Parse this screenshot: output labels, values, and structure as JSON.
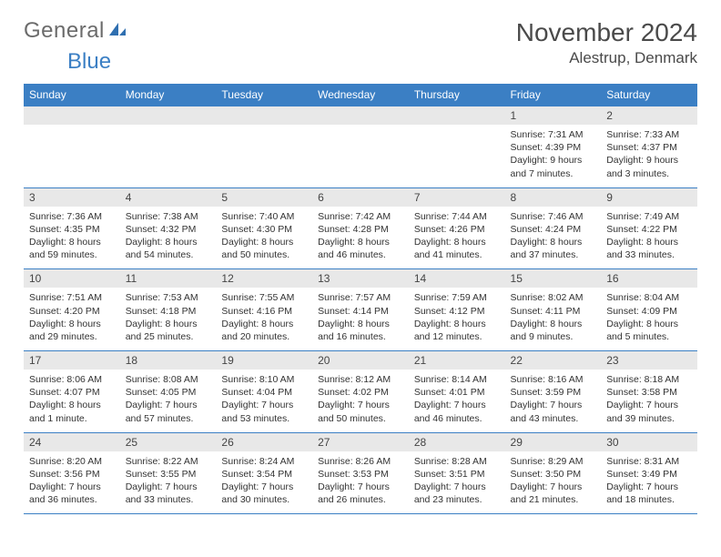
{
  "brand": {
    "general": "General",
    "blue": "Blue"
  },
  "title": {
    "month_year": "November 2024",
    "location": "Alestrup, Denmark"
  },
  "colors": {
    "accent": "#3b7fc4",
    "header_text": "#ffffff",
    "daybar": "#e8e8e8",
    "text": "#333333",
    "logo_gray": "#6b6b6b"
  },
  "day_labels": [
    "Sunday",
    "Monday",
    "Tuesday",
    "Wednesday",
    "Thursday",
    "Friday",
    "Saturday"
  ],
  "weeks": [
    [
      null,
      null,
      null,
      null,
      null,
      {
        "n": "1",
        "sr": "Sunrise: 7:31 AM",
        "ss": "Sunset: 4:39 PM",
        "dl": "Daylight: 9 hours and 7 minutes."
      },
      {
        "n": "2",
        "sr": "Sunrise: 7:33 AM",
        "ss": "Sunset: 4:37 PM",
        "dl": "Daylight: 9 hours and 3 minutes."
      }
    ],
    [
      {
        "n": "3",
        "sr": "Sunrise: 7:36 AM",
        "ss": "Sunset: 4:35 PM",
        "dl": "Daylight: 8 hours and 59 minutes."
      },
      {
        "n": "4",
        "sr": "Sunrise: 7:38 AM",
        "ss": "Sunset: 4:32 PM",
        "dl": "Daylight: 8 hours and 54 minutes."
      },
      {
        "n": "5",
        "sr": "Sunrise: 7:40 AM",
        "ss": "Sunset: 4:30 PM",
        "dl": "Daylight: 8 hours and 50 minutes."
      },
      {
        "n": "6",
        "sr": "Sunrise: 7:42 AM",
        "ss": "Sunset: 4:28 PM",
        "dl": "Daylight: 8 hours and 46 minutes."
      },
      {
        "n": "7",
        "sr": "Sunrise: 7:44 AM",
        "ss": "Sunset: 4:26 PM",
        "dl": "Daylight: 8 hours and 41 minutes."
      },
      {
        "n": "8",
        "sr": "Sunrise: 7:46 AM",
        "ss": "Sunset: 4:24 PM",
        "dl": "Daylight: 8 hours and 37 minutes."
      },
      {
        "n": "9",
        "sr": "Sunrise: 7:49 AM",
        "ss": "Sunset: 4:22 PM",
        "dl": "Daylight: 8 hours and 33 minutes."
      }
    ],
    [
      {
        "n": "10",
        "sr": "Sunrise: 7:51 AM",
        "ss": "Sunset: 4:20 PM",
        "dl": "Daylight: 8 hours and 29 minutes."
      },
      {
        "n": "11",
        "sr": "Sunrise: 7:53 AM",
        "ss": "Sunset: 4:18 PM",
        "dl": "Daylight: 8 hours and 25 minutes."
      },
      {
        "n": "12",
        "sr": "Sunrise: 7:55 AM",
        "ss": "Sunset: 4:16 PM",
        "dl": "Daylight: 8 hours and 20 minutes."
      },
      {
        "n": "13",
        "sr": "Sunrise: 7:57 AM",
        "ss": "Sunset: 4:14 PM",
        "dl": "Daylight: 8 hours and 16 minutes."
      },
      {
        "n": "14",
        "sr": "Sunrise: 7:59 AM",
        "ss": "Sunset: 4:12 PM",
        "dl": "Daylight: 8 hours and 12 minutes."
      },
      {
        "n": "15",
        "sr": "Sunrise: 8:02 AM",
        "ss": "Sunset: 4:11 PM",
        "dl": "Daylight: 8 hours and 9 minutes."
      },
      {
        "n": "16",
        "sr": "Sunrise: 8:04 AM",
        "ss": "Sunset: 4:09 PM",
        "dl": "Daylight: 8 hours and 5 minutes."
      }
    ],
    [
      {
        "n": "17",
        "sr": "Sunrise: 8:06 AM",
        "ss": "Sunset: 4:07 PM",
        "dl": "Daylight: 8 hours and 1 minute."
      },
      {
        "n": "18",
        "sr": "Sunrise: 8:08 AM",
        "ss": "Sunset: 4:05 PM",
        "dl": "Daylight: 7 hours and 57 minutes."
      },
      {
        "n": "19",
        "sr": "Sunrise: 8:10 AM",
        "ss": "Sunset: 4:04 PM",
        "dl": "Daylight: 7 hours and 53 minutes."
      },
      {
        "n": "20",
        "sr": "Sunrise: 8:12 AM",
        "ss": "Sunset: 4:02 PM",
        "dl": "Daylight: 7 hours and 50 minutes."
      },
      {
        "n": "21",
        "sr": "Sunrise: 8:14 AM",
        "ss": "Sunset: 4:01 PM",
        "dl": "Daylight: 7 hours and 46 minutes."
      },
      {
        "n": "22",
        "sr": "Sunrise: 8:16 AM",
        "ss": "Sunset: 3:59 PM",
        "dl": "Daylight: 7 hours and 43 minutes."
      },
      {
        "n": "23",
        "sr": "Sunrise: 8:18 AM",
        "ss": "Sunset: 3:58 PM",
        "dl": "Daylight: 7 hours and 39 minutes."
      }
    ],
    [
      {
        "n": "24",
        "sr": "Sunrise: 8:20 AM",
        "ss": "Sunset: 3:56 PM",
        "dl": "Daylight: 7 hours and 36 minutes."
      },
      {
        "n": "25",
        "sr": "Sunrise: 8:22 AM",
        "ss": "Sunset: 3:55 PM",
        "dl": "Daylight: 7 hours and 33 minutes."
      },
      {
        "n": "26",
        "sr": "Sunrise: 8:24 AM",
        "ss": "Sunset: 3:54 PM",
        "dl": "Daylight: 7 hours and 30 minutes."
      },
      {
        "n": "27",
        "sr": "Sunrise: 8:26 AM",
        "ss": "Sunset: 3:53 PM",
        "dl": "Daylight: 7 hours and 26 minutes."
      },
      {
        "n": "28",
        "sr": "Sunrise: 8:28 AM",
        "ss": "Sunset: 3:51 PM",
        "dl": "Daylight: 7 hours and 23 minutes."
      },
      {
        "n": "29",
        "sr": "Sunrise: 8:29 AM",
        "ss": "Sunset: 3:50 PM",
        "dl": "Daylight: 7 hours and 21 minutes."
      },
      {
        "n": "30",
        "sr": "Sunrise: 8:31 AM",
        "ss": "Sunset: 3:49 PM",
        "dl": "Daylight: 7 hours and 18 minutes."
      }
    ]
  ]
}
